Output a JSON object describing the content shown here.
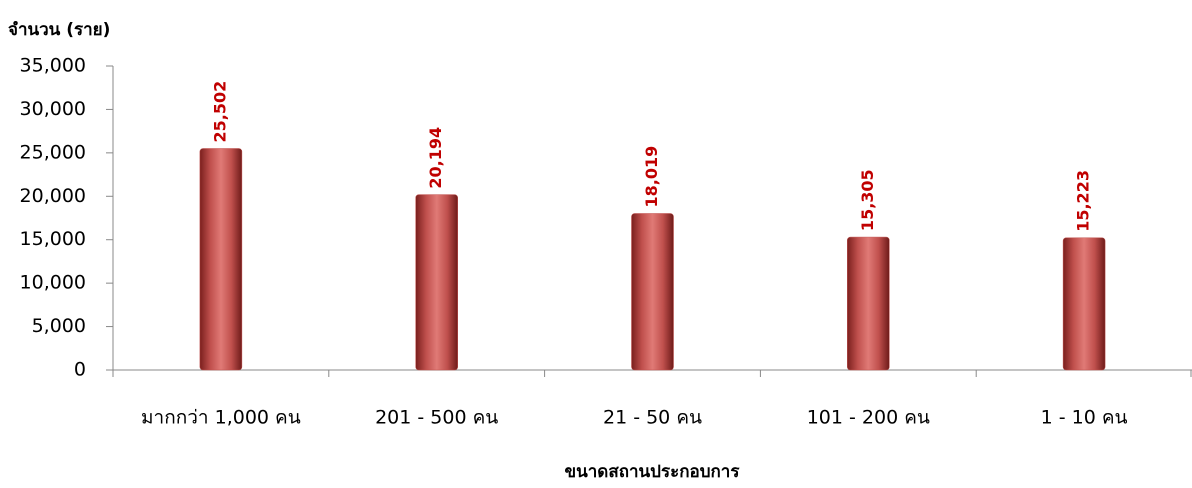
{
  "chart_data": {
    "type": "bar",
    "ylabel": "จำนวน (ราย)",
    "xlabel": "ขนาดสถานประกอบการ",
    "categories": [
      "มากกว่า 1,000 คน",
      "201 - 500 คน",
      "21 - 50 คน",
      "101 - 200 คน",
      "1 - 10 คน"
    ],
    "values": [
      25502,
      20194,
      18019,
      15305,
      15223
    ],
    "value_labels": [
      "25,502",
      "20,194",
      "18,019",
      "15,305",
      "15,223"
    ],
    "color": "#c0504d",
    "ylim": [
      0,
      35000
    ],
    "yticks": [
      0,
      {
        "value": 5000,
        "label": "5,000"
      },
      {
        "value": 10000,
        "label": "10,000"
      },
      {
        "value": 15000,
        "label": "15,000"
      },
      {
        "value": 20000,
        "label": "20,000"
      },
      {
        "value": 25000,
        "label": "25,000"
      },
      {
        "value": 30000,
        "label": "30,000"
      },
      {
        "value": 35000,
        "label": "35,000"
      }
    ],
    "grid": false
  }
}
